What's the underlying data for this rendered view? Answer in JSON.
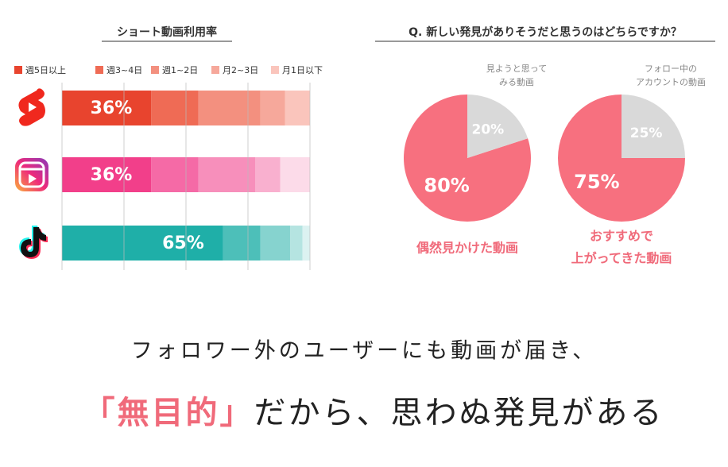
{
  "chart_data": [
    {
      "type": "bar",
      "orientation": "horizontal",
      "stacked": true,
      "title": "ショート動画利用率",
      "categories": [
        null,
        null,
        null
      ],
      "series": [
        {
          "name": "週5日以上",
          "color": "#e8442e",
          "values": [
            36,
            36,
            65
          ],
          "value_labels": [
            "36%",
            "36%",
            "65%"
          ]
        },
        {
          "name": "週3~4日",
          "color": "#ef6b55",
          "values": [
            19,
            19,
            15
          ]
        },
        {
          "name": "週1~2日",
          "color": "#f3907f",
          "values": [
            25,
            23,
            12
          ]
        },
        {
          "name": "月2~3日",
          "color": "#f6a89b",
          "values": [
            10,
            10,
            5
          ]
        },
        {
          "name": "月1日以下",
          "color": "#fac5bc",
          "values": [
            10,
            12,
            3
          ]
        }
      ],
      "bar_colors": [
        [
          "#e8442e",
          "#ef6b55",
          "#f3907f",
          "#f6a89b",
          "#fac5bc"
        ],
        [
          "#f23f8a",
          "#f56aa6",
          "#f78fbb",
          "#f9b0cf",
          "#fcdbe9"
        ],
        [
          "#1fafa8",
          "#4dbfb9",
          "#86d3cf",
          "#b5e4e1",
          "#dcf2f1"
        ]
      ],
      "xlim": [
        0,
        100
      ],
      "xticks": [
        0,
        25,
        50,
        75,
        100
      ],
      "grid": true,
      "legend": "top"
    },
    {
      "type": "pie",
      "title": "Q. 新しい発見がありそうだと思うのはどちらですか？",
      "categories": [
        [
          "偶然見かけた動画"
        ],
        [
          "見ようと思って",
          "みる動画"
        ]
      ],
      "values": [
        80,
        20
      ],
      "value_labels": [
        "80%",
        "20%"
      ],
      "colors": [
        "#f7707f",
        "#d9d9d9"
      ]
    },
    {
      "type": "pie",
      "categories": [
        [
          "おすすめで",
          "上がってきた動画"
        ],
        [
          "フォロー中の",
          "アカウントの動画"
        ]
      ],
      "values": [
        75,
        25
      ],
      "value_labels": [
        "75%",
        "25%"
      ],
      "colors": [
        "#f7707f",
        "#d9d9d9"
      ]
    }
  ],
  "message": {
    "line1": "フォロワー外のユーザーにも動画が届き、",
    "emphasis": "「無目的」",
    "rest": "だから、思わぬ発見がある"
  }
}
